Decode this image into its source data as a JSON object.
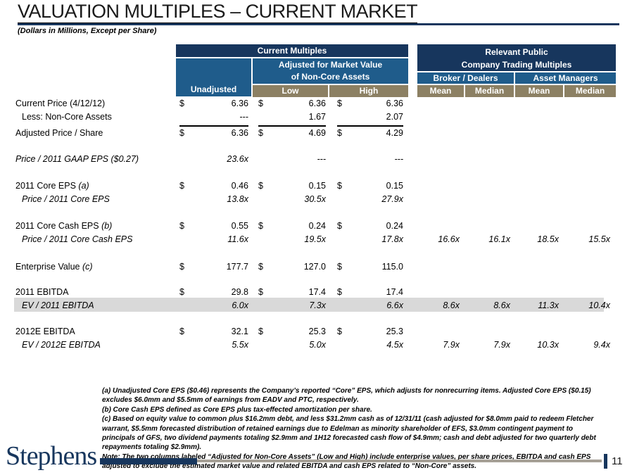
{
  "slide": {
    "title": "VALUATION MULTIPLES – CURRENT MARKET",
    "subtitle": "(Dollars in Millions, Except per Share)",
    "logo": "Stephens",
    "page_number": "11"
  },
  "colors": {
    "navy": "#17365D",
    "blue": "#1F5C8B",
    "tan": "#8C8063",
    "highlight": "#D9D9D9"
  },
  "table": {
    "currency_symbol": "$",
    "left_header": {
      "group": "Current Multiples",
      "adjusted_line1": "Adjusted for Market Value",
      "adjusted_line2": "of Non-Core Assets",
      "unadjusted": "Unadjusted",
      "low": "Low",
      "high": "High"
    },
    "right_header": {
      "group_line1": "Relevant Public",
      "group_line2": "Company Trading Multiples",
      "broker": "Broker / Dealers",
      "asset": "Asset Managers",
      "broker_mean": "Mean",
      "broker_median": "Median",
      "asset_mean": "Mean",
      "asset_median": "Median"
    },
    "rows": [
      {
        "label": "Current Price (4/12/12)",
        "dollar": true,
        "u": "6.36",
        "low": "6.36",
        "high": "6.36"
      },
      {
        "label": "Less: Non-Core Assets",
        "indent": true,
        "u": "---",
        "low": "1.67",
        "high": "2.07"
      },
      {
        "label": "Adjusted Price / Share",
        "dollar": true,
        "u": "6.36",
        "low": "4.69",
        "high": "4.29"
      },
      {
        "label": "Price / 2011 GAAP EPS ($0.27)",
        "italic": true,
        "u": "23.6x",
        "low": "---",
        "high": "---"
      },
      {
        "label": "2011 Core EPS ",
        "note": "(a)",
        "dollar": true,
        "u": "0.46",
        "low": "0.15",
        "high": "0.15"
      },
      {
        "label": "Price / 2011 Core EPS",
        "indent": true,
        "italic": true,
        "u": "13.8x",
        "low": "30.5x",
        "high": "27.9x"
      },
      {
        "label": "2011 Core Cash EPS ",
        "note": "(b)",
        "dollar": true,
        "u": "0.55",
        "low": "0.24",
        "high": "0.24"
      },
      {
        "label": "Price / 2011 Core Cash EPS",
        "indent": true,
        "italic": true,
        "u": "11.6x",
        "low": "19.5x",
        "high": "17.8x",
        "bm": "16.6x",
        "bmd": "16.1x",
        "am": "18.5x",
        "amd": "15.5x"
      },
      {
        "label": "Enterprise Value ",
        "note": "(c)",
        "dollar": true,
        "u": "177.7",
        "low": "127.0",
        "high": "115.0"
      },
      {
        "label": "2011 EBITDA",
        "dollar": true,
        "u": "29.8",
        "low": "17.4",
        "high": "17.4"
      },
      {
        "label": "EV / 2011 EBITDA",
        "indent": true,
        "italic": true,
        "highlight": true,
        "u": "6.0x",
        "low": "7.3x",
        "high": "6.6x",
        "bm": "8.6x",
        "bmd": "8.6x",
        "am": "11.3x",
        "amd": "10.4x"
      },
      {
        "label": "2012E EBITDA",
        "dollar": true,
        "u": "32.1",
        "low": "25.3",
        "high": "25.3"
      },
      {
        "label": "EV / 2012E EBITDA",
        "indent": true,
        "italic": true,
        "u": "5.5x",
        "low": "5.0x",
        "high": "4.5x",
        "bm": "7.9x",
        "bmd": "7.9x",
        "am": "10.3x",
        "amd": "9.4x"
      }
    ]
  },
  "footnotes": [
    "(a) Unadjusted Core EPS ($0.46) represents the Company’s reported “Core” EPS, which adjusts for nonrecurring items.  Adjusted Core EPS ($0.15) excludes $6.0mm and $5.5mm of earnings from EADV and PTC, respectively.",
    "(b) Core Cash EPS defined as Core EPS plus tax-effected amortization per share.",
    "(c) Based on equity value to common plus $16.2mm debt, and less $31.2mm cash as of 12/31/11 (cash adjusted for $8.0mm paid to redeem Fletcher warrant, $5.5mm forecasted distribution of retained earnings due to Edelman as minority shareholder of EFS, $3.0mm contingent payment to principals of GFS, two dividend payments totaling $2.9mm and 1H12 forecasted cash flow of $4.9mm; cash and debt adjusted for two quarterly debt repayments totaling $2.9mm).",
    "Note: The two columns labeled “Adjusted for Non-Core Assets” (Low and High) include enterprise values, per share prices, EBITDA and cash EPS adjusted to exclude the estimated market value and related EBITDA and cash EPS related to “Non-Core” assets."
  ]
}
